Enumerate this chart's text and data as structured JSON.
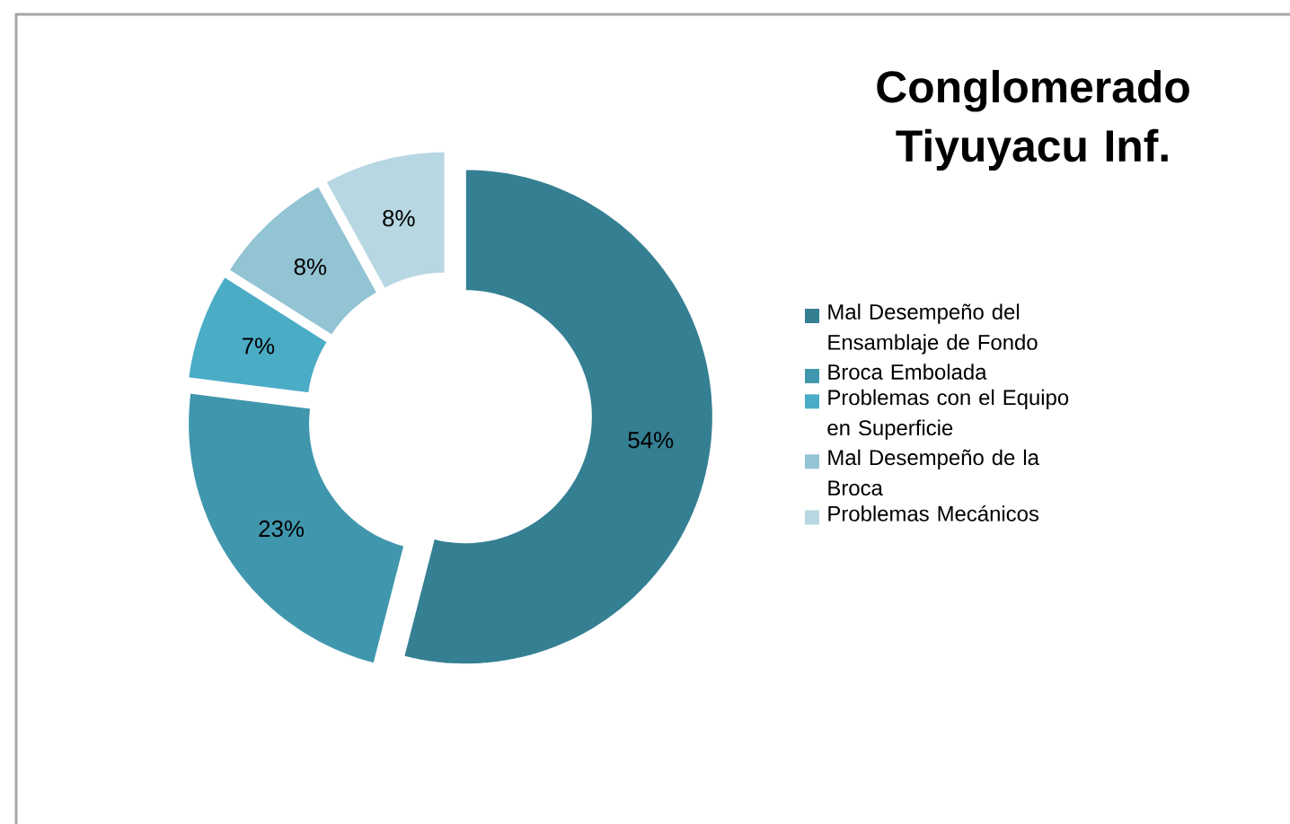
{
  "chart_data": {
    "type": "donut",
    "title": "Conglomerado Tiyuyacu Inf.",
    "categories": [
      "Mal Desempeño del Ensamblaje de Fondo",
      "Broca Embolada",
      "Problemas con el Equipo en Superficie",
      "Mal Desempeño de la Broca",
      "Problemas Mecánicos"
    ],
    "values": [
      54,
      23,
      7,
      8,
      8
    ],
    "value_labels": [
      "54%",
      "23%",
      "7%",
      "8%",
      "8%"
    ],
    "colors": [
      "#357f93",
      "#4097ad",
      "#4bacc6",
      "#93c4d4",
      "#b7d7e2"
    ],
    "legend": "right"
  }
}
